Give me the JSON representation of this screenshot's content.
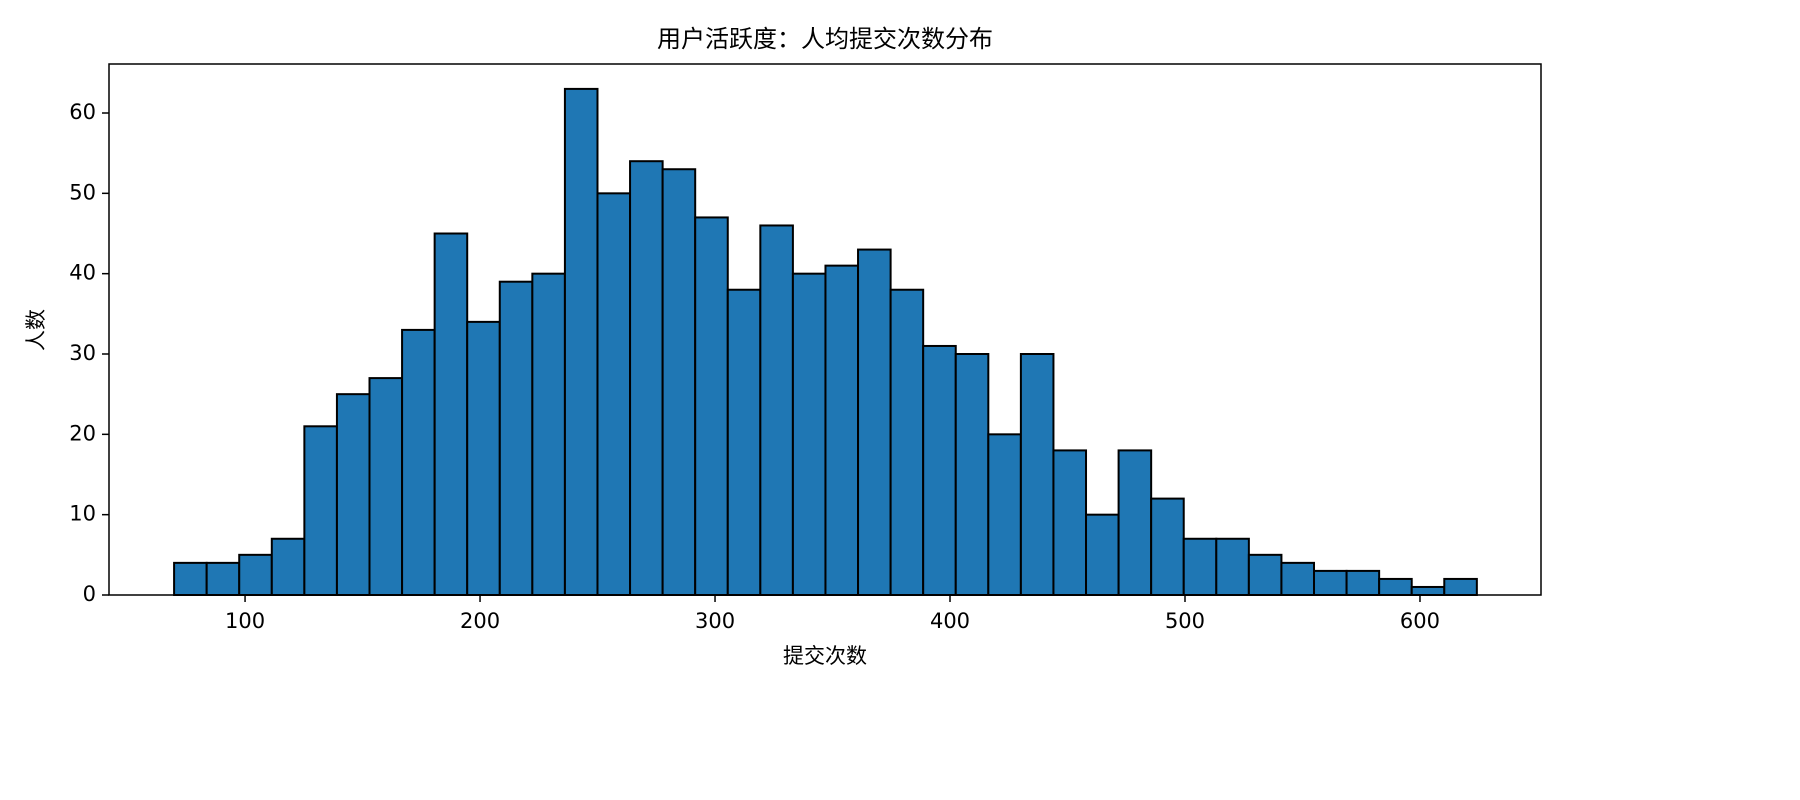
{
  "chart_data": {
    "type": "histogram",
    "title": "用户活跃度：人均提交次数分布",
    "x_label": "提交次数",
    "y_label": "人数",
    "bins": [
      69.8,
      83.66,
      97.52,
      111.38,
      125.24,
      139.1,
      152.96,
      166.82,
      180.68,
      194.54,
      208.4,
      222.26,
      236.12,
      249.98,
      263.84,
      277.7,
      291.56,
      305.42,
      319.28,
      333.14,
      347,
      360.86,
      374.72,
      388.58,
      402.44,
      416.3,
      430.16,
      444.02,
      457.88,
      471.74,
      485.6,
      499.46,
      513.32,
      527.18,
      541.04,
      554.9,
      568.76,
      582.62,
      596.48,
      610.34,
      624.2
    ],
    "values": [
      4,
      4,
      5,
      7,
      21,
      25,
      27,
      33,
      45,
      34,
      39,
      40,
      63,
      50,
      54,
      53,
      47,
      38,
      46,
      40,
      41,
      43,
      38,
      31,
      30,
      20,
      30,
      18,
      10,
      18,
      12,
      7,
      7,
      5,
      4,
      3,
      3,
      2,
      1,
      2
    ],
    "color": "#1f77b4",
    "edgecolor": "#000000",
    "xlim": [
      42.1,
      651.5
    ],
    "xticks": [
      100,
      200,
      300,
      400,
      500,
      600
    ],
    "ylim": [
      0,
      66.1
    ],
    "yticks": [
      0,
      10,
      20,
      30,
      40,
      50,
      60
    ],
    "grid": false
  }
}
